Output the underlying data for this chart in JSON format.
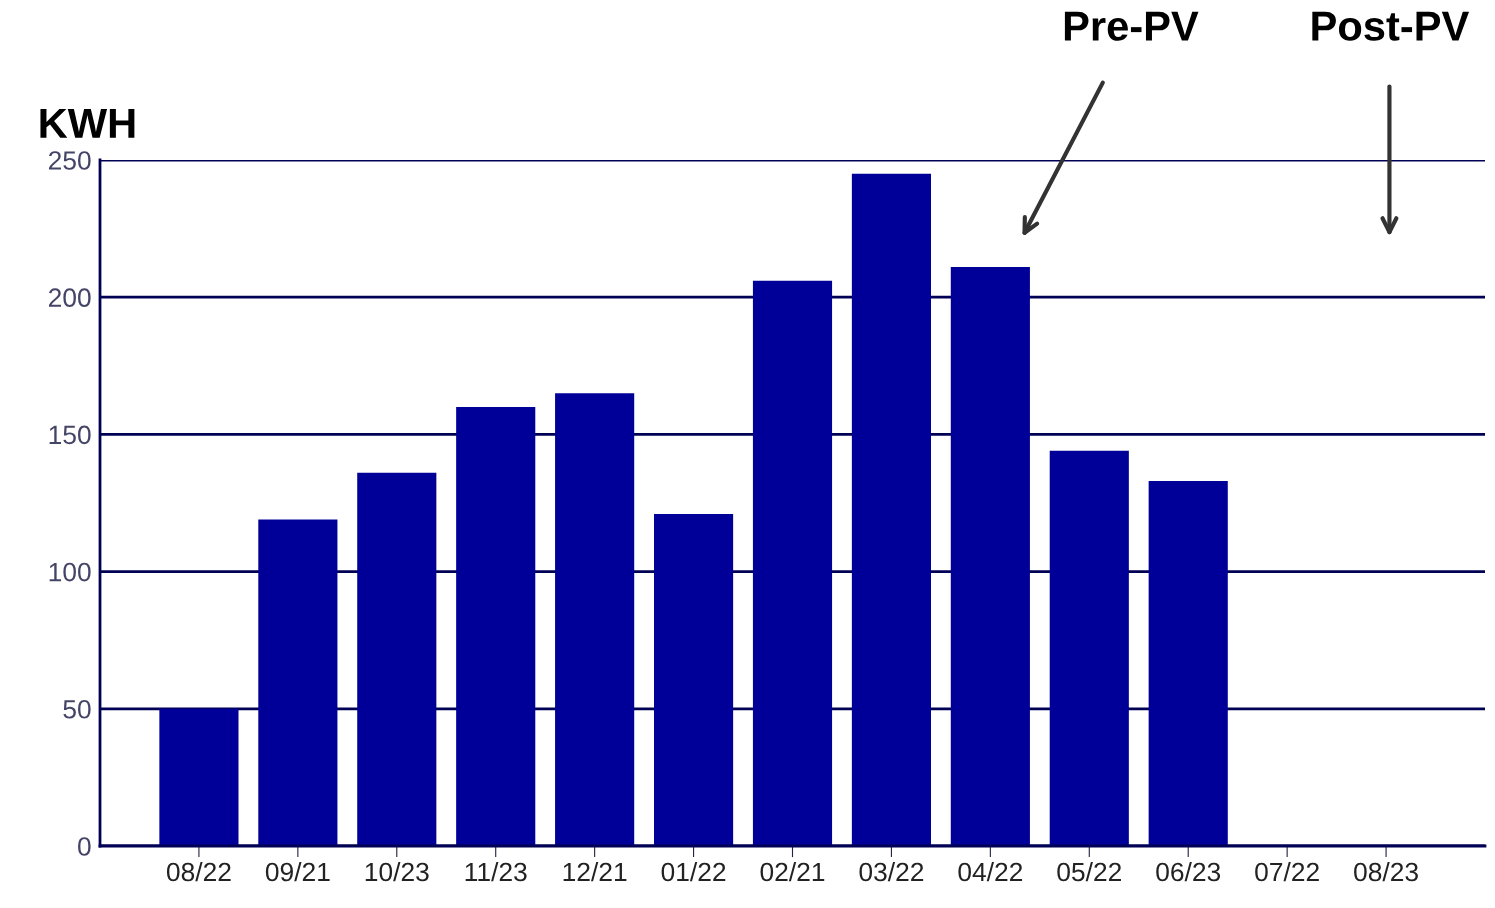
{
  "chart_data": {
    "type": "bar",
    "ylabel": "KWH",
    "categories": [
      "08/22",
      "09/21",
      "10/23",
      "11/23",
      "12/21",
      "01/22",
      "02/21",
      "03/22",
      "04/22",
      "05/22",
      "06/23",
      "07/22",
      "08/23"
    ],
    "values": [
      50,
      119,
      136,
      160,
      165,
      121,
      206,
      245,
      211,
      144,
      133,
      null,
      null
    ],
    "color": "#000099",
    "ylim": [
      0,
      250
    ],
    "yticks": [
      0,
      50,
      100,
      150,
      200,
      250
    ],
    "grid": "y",
    "annotations": [
      "Pre-PV",
      "Post-PV"
    ]
  }
}
